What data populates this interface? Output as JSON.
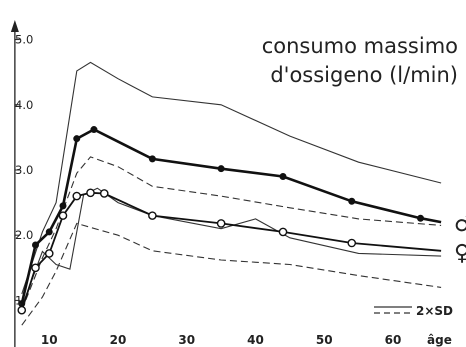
{
  "chart_data": {
    "type": "line",
    "title": [
      "consumo massimo",
      "d'ossigeno (l/min)"
    ],
    "xlabel": "âge",
    "ylabel": "",
    "xlim": [
      4,
      68
    ],
    "ylim": [
      0.5,
      5.3
    ],
    "x_ticks": [
      10,
      20,
      30,
      40,
      50,
      60
    ],
    "y_tick_labels": [
      {
        "value": 1,
        "label": "1"
      },
      {
        "value": 2,
        "label": "2.0"
      },
      {
        "value": 3,
        "label": "3.0"
      },
      {
        "value": 4,
        "label": "4.0"
      },
      {
        "value": 5,
        "label": "5.0"
      }
    ],
    "series": [
      {
        "name": "male",
        "symbol": "♂",
        "marker": "filled",
        "x": [
          6,
          8,
          10,
          12,
          14,
          16.5,
          25,
          35,
          44,
          54,
          64,
          67
        ],
        "y": [
          0.95,
          1.85,
          2.05,
          2.45,
          3.48,
          3.62,
          3.17,
          3.02,
          2.9,
          2.52,
          2.26,
          2.2
        ]
      },
      {
        "name": "female",
        "symbol": "♀",
        "marker": "open",
        "x": [
          6,
          8,
          10,
          12,
          14,
          16,
          18,
          25,
          35,
          44,
          54,
          67
        ],
        "y": [
          0.85,
          1.5,
          1.72,
          2.3,
          2.6,
          2.65,
          2.64,
          2.3,
          2.18,
          2.05,
          1.88,
          1.76
        ]
      }
    ],
    "bands": {
      "label": "2×SD",
      "lines": [
        {
          "style": "solid",
          "x": [
            6,
            9,
            11,
            14,
            16,
            20,
            25,
            35,
            45,
            55,
            67
          ],
          "y": [
            1.1,
            2.05,
            2.5,
            4.52,
            4.65,
            4.4,
            4.12,
            4.0,
            3.52,
            3.12,
            2.8
          ]
        },
        {
          "style": "dashed",
          "x": [
            6,
            9,
            11,
            14,
            16,
            20,
            25,
            35,
            45,
            55,
            67
          ],
          "y": [
            0.85,
            1.65,
            2.1,
            2.95,
            3.2,
            3.05,
            2.75,
            2.6,
            2.42,
            2.25,
            2.15
          ]
        },
        {
          "style": "solid",
          "x": [
            6,
            9,
            11,
            13,
            15,
            17,
            20,
            25,
            35,
            40,
            45,
            55,
            67
          ],
          "y": [
            0.9,
            1.75,
            1.55,
            1.48,
            2.62,
            2.72,
            2.5,
            2.3,
            2.1,
            2.25,
            1.96,
            1.72,
            1.68
          ]
        },
        {
          "style": "dashed",
          "x": [
            6,
            9,
            11,
            14,
            16,
            20,
            25,
            35,
            45,
            55,
            67
          ],
          "y": [
            0.62,
            1.05,
            1.45,
            2.18,
            2.12,
            2.0,
            1.76,
            1.62,
            1.55,
            1.38,
            1.2
          ]
        }
      ]
    }
  }
}
